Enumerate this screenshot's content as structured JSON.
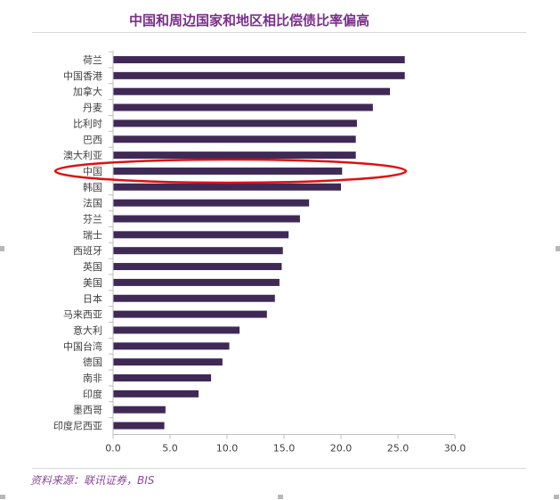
{
  "title": "中国和周边国家和地区相比偿债比率偏高",
  "source": "资料来源：联讯证券，BIS",
  "colors": {
    "bar": "#3f2a56",
    "highlight": "#e01010",
    "title": "#7a2f8a",
    "axis": "#bfbfbf"
  },
  "chart_data": {
    "type": "bar",
    "orientation": "horizontal",
    "title": "中国和周边国家和地区相比偿债比率偏高",
    "xlabel": "",
    "ylabel": "",
    "xlim": [
      0,
      30
    ],
    "xticks": [
      "0.0",
      "5.0",
      "10.0",
      "15.0",
      "20.0",
      "25.0",
      "30.0"
    ],
    "grid": false,
    "highlighted_category": "中国",
    "categories": [
      "荷兰",
      "中国香港",
      "加拿大",
      "丹麦",
      "比利时",
      "巴西",
      "澳大利亚",
      "中国",
      "韩国",
      "法国",
      "芬兰",
      "瑞士",
      "西班牙",
      "英国",
      "美国",
      "日本",
      "马来西亚",
      "意大利",
      "中国台湾",
      "德国",
      "南非",
      "印度",
      "墨西哥",
      "印度尼西亚"
    ],
    "values": [
      25.6,
      25.6,
      24.3,
      22.8,
      21.4,
      21.3,
      21.3,
      20.1,
      20.0,
      17.2,
      16.4,
      15.4,
      14.9,
      14.8,
      14.6,
      14.2,
      13.5,
      11.1,
      10.2,
      9.6,
      8.6,
      7.5,
      4.6,
      4.5
    ]
  }
}
